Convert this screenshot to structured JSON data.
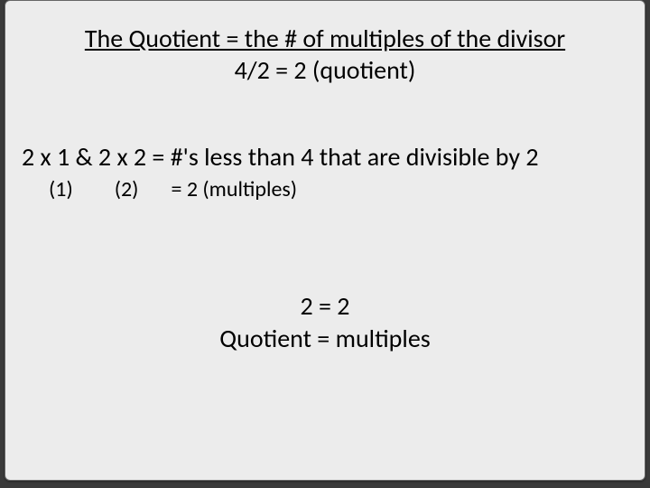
{
  "background_color": "#3a3a3a",
  "slide": {
    "background_color": "#ececec",
    "border_color": "#666666",
    "text_color": "#000000",
    "title_fontsize": 28,
    "body_fontsize": 28,
    "sub_fontsize": 24,
    "title": {
      "line1": "The Quotient = the # of multiples of the divisor",
      "line2": "4/2 = 2 (quotient)"
    },
    "body": {
      "line1": "2 x 1 & 2 x 2 = #'s less than 4 that are divisible by 2",
      "line2_part1": "(1)",
      "line2_part2": "(2)",
      "line2_part3": "=  2 (multiples)"
    },
    "conclusion": {
      "line1": "2 = 2",
      "line2": "Quotient = multiples"
    }
  }
}
